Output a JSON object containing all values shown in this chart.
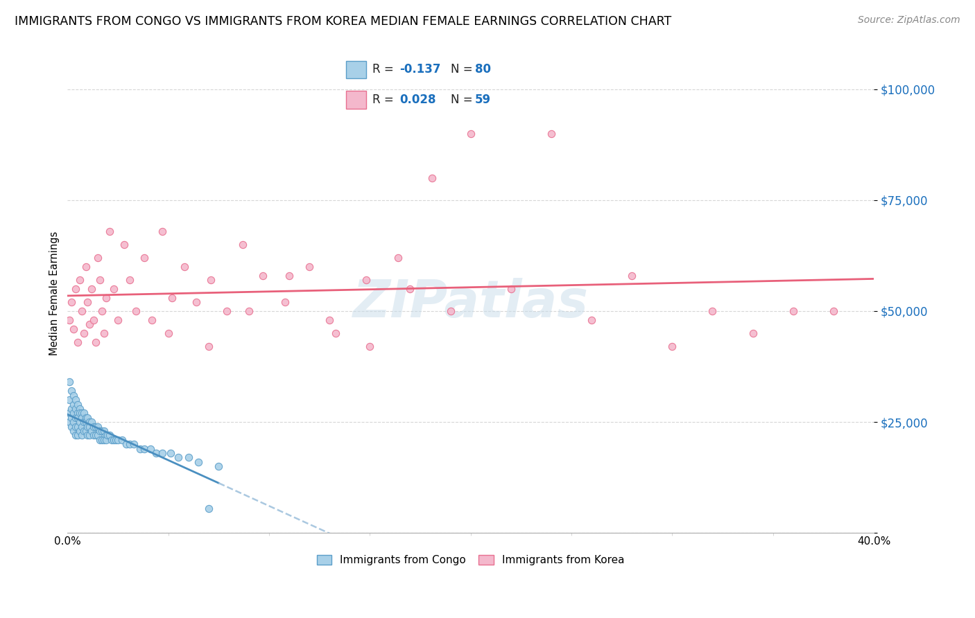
{
  "title": "IMMIGRANTS FROM CONGO VS IMMIGRANTS FROM KOREA MEDIAN FEMALE EARNINGS CORRELATION CHART",
  "source": "Source: ZipAtlas.com",
  "ylabel": "Median Female Earnings",
  "yticks": [
    0,
    25000,
    50000,
    75000,
    100000
  ],
  "xlim": [
    0.0,
    0.4
  ],
  "ylim": [
    0,
    108000
  ],
  "congo_R": -0.137,
  "congo_N": 80,
  "korea_R": 0.028,
  "korea_N": 59,
  "congo_color": "#a8d0e8",
  "korea_color": "#f4b8cc",
  "congo_edge_color": "#5b9ec9",
  "korea_edge_color": "#e87090",
  "congo_line_color": "#4a8fc0",
  "korea_line_color": "#e8607a",
  "trendline_dashed_color": "#aac8e0",
  "watermark": "ZIPatlas",
  "title_fontsize": 12.5,
  "source_fontsize": 10,
  "legend_fontsize": 12,
  "congo_x": [
    0.001,
    0.001,
    0.001,
    0.001,
    0.002,
    0.002,
    0.002,
    0.002,
    0.003,
    0.003,
    0.003,
    0.003,
    0.003,
    0.004,
    0.004,
    0.004,
    0.004,
    0.004,
    0.005,
    0.005,
    0.005,
    0.005,
    0.005,
    0.006,
    0.006,
    0.006,
    0.006,
    0.007,
    0.007,
    0.007,
    0.007,
    0.008,
    0.008,
    0.008,
    0.009,
    0.009,
    0.009,
    0.01,
    0.01,
    0.01,
    0.011,
    0.011,
    0.011,
    0.012,
    0.012,
    0.013,
    0.013,
    0.014,
    0.014,
    0.015,
    0.015,
    0.016,
    0.016,
    0.017,
    0.017,
    0.018,
    0.018,
    0.019,
    0.019,
    0.02,
    0.021,
    0.022,
    0.023,
    0.024,
    0.025,
    0.027,
    0.029,
    0.031,
    0.033,
    0.036,
    0.038,
    0.041,
    0.044,
    0.047,
    0.051,
    0.055,
    0.06,
    0.065,
    0.07,
    0.075
  ],
  "congo_y": [
    34000,
    30000,
    27000,
    25000,
    32000,
    28000,
    26000,
    24000,
    31000,
    29000,
    27000,
    25000,
    23000,
    30000,
    28000,
    26000,
    24000,
    22000,
    29000,
    27000,
    26000,
    24000,
    22000,
    28000,
    27000,
    25000,
    23000,
    27000,
    26000,
    24000,
    22000,
    27000,
    25000,
    23000,
    26000,
    25000,
    23000,
    26000,
    24000,
    22000,
    25000,
    24000,
    22000,
    25000,
    23000,
    24000,
    22000,
    24000,
    22000,
    24000,
    22000,
    23000,
    21000,
    23000,
    21000,
    23000,
    21000,
    22000,
    21000,
    22000,
    22000,
    21000,
    21000,
    21000,
    21000,
    21000,
    20000,
    20000,
    20000,
    19000,
    19000,
    19000,
    18000,
    18000,
    18000,
    17000,
    17000,
    16000,
    5500,
    15000
  ],
  "korea_x": [
    0.001,
    0.002,
    0.003,
    0.004,
    0.005,
    0.006,
    0.007,
    0.008,
    0.009,
    0.01,
    0.011,
    0.012,
    0.013,
    0.014,
    0.015,
    0.016,
    0.017,
    0.018,
    0.019,
    0.021,
    0.023,
    0.025,
    0.028,
    0.031,
    0.034,
    0.038,
    0.042,
    0.047,
    0.052,
    0.058,
    0.064,
    0.071,
    0.079,
    0.087,
    0.097,
    0.108,
    0.12,
    0.133,
    0.148,
    0.164,
    0.181,
    0.2,
    0.22,
    0.24,
    0.26,
    0.28,
    0.3,
    0.32,
    0.34,
    0.36,
    0.38,
    0.05,
    0.07,
    0.09,
    0.11,
    0.13,
    0.15,
    0.17,
    0.19
  ],
  "korea_y": [
    48000,
    52000,
    46000,
    55000,
    43000,
    57000,
    50000,
    45000,
    60000,
    52000,
    47000,
    55000,
    48000,
    43000,
    62000,
    57000,
    50000,
    45000,
    53000,
    68000,
    55000,
    48000,
    65000,
    57000,
    50000,
    62000,
    48000,
    68000,
    53000,
    60000,
    52000,
    57000,
    50000,
    65000,
    58000,
    52000,
    60000,
    45000,
    57000,
    62000,
    80000,
    90000,
    55000,
    90000,
    48000,
    58000,
    42000,
    50000,
    45000,
    50000,
    50000,
    45000,
    42000,
    50000,
    58000,
    48000,
    42000,
    55000,
    50000
  ]
}
